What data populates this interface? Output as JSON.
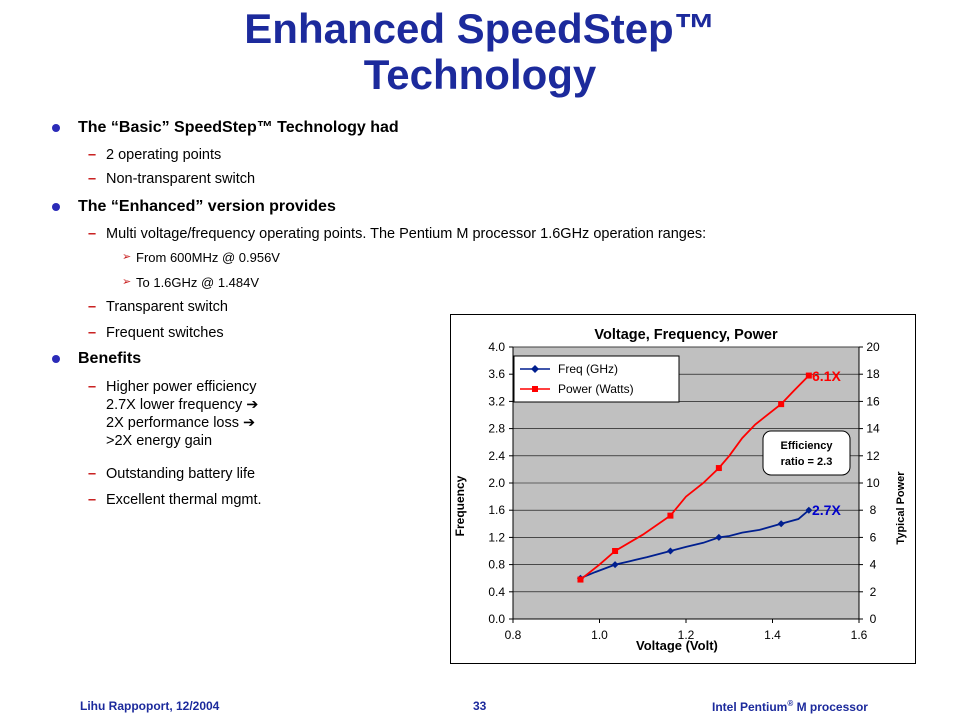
{
  "slide": {
    "title_line1": "Enhanced SpeedStep™",
    "title_line2": "Technology",
    "b1": "The “Basic” SpeedStep™ Technology had",
    "b1_s1": "2 operating points",
    "b1_s2": "Non-transparent switch",
    "b2": "The “Enhanced” version provides",
    "b2_s1": "Multi voltage/frequency operating points. The Pentium M processor 1.6GHz operation ranges:",
    "b2_s1_a": "From 600MHz  @ 0.956V",
    "b2_s1_b": "To 1.6GHz  @ 1.484V",
    "b2_s2": "Transparent switch",
    "b2_s3": "Frequent switches",
    "b3": "Benefits",
    "b3_s1_l1": "Higher power efficiency",
    "b3_s1_l2": "2.7X lower frequency",
    "b3_s1_l3": "2X performance loss",
    "b3_s1_l4": ">2X energy gain",
    "b3_s2": "Outstanding battery life",
    "b3_s3": "Excellent thermal mgmt."
  },
  "footer": {
    "author": "Lihu Rappoport,  12/2004",
    "page": "33",
    "product": "Intel Pentium",
    "product_sup": "®",
    "product_rest": " M processor"
  },
  "colors": {
    "title": "#1c2a9c",
    "freq": "#001f8f",
    "power": "#ff0000",
    "plot_bg": "#c0c0c0"
  },
  "chart_data": {
    "type": "line",
    "title": "Voltage, Frequency, Power",
    "xlabel": "Voltage (Volt)",
    "ylabel": "Frequency",
    "y2label": "Typical Power",
    "xlim": [
      0.8,
      1.6
    ],
    "ylim": [
      0.0,
      4.0
    ],
    "y2lim": [
      0,
      20
    ],
    "xticks": [
      "0.8",
      "1.0",
      "1.2",
      "1.4",
      "1.6"
    ],
    "yticks": [
      "0.0",
      "0.4",
      "0.8",
      "1.2",
      "1.6",
      "2.0",
      "2.4",
      "2.8",
      "3.2",
      "3.6",
      "4.0"
    ],
    "y2ticks": [
      "0",
      "2",
      "4",
      "6",
      "8",
      "10",
      "12",
      "14",
      "16",
      "18",
      "20"
    ],
    "grid": "horizontal",
    "legend_position": "top-left",
    "series": [
      {
        "name": "Freq (GHz)",
        "axis": "left",
        "color": "#001f8f",
        "markers": [
          [
            0.956,
            0.6
          ],
          [
            1.036,
            0.8
          ],
          [
            1.164,
            1.0
          ],
          [
            1.276,
            1.2
          ],
          [
            1.42,
            1.4
          ],
          [
            1.484,
            1.6
          ]
        ],
        "points": [
          [
            0.956,
            0.6
          ],
          [
            0.99,
            0.69
          ],
          [
            1.036,
            0.8
          ],
          [
            1.07,
            0.85
          ],
          [
            1.11,
            0.91
          ],
          [
            1.164,
            1.0
          ],
          [
            1.2,
            1.06
          ],
          [
            1.24,
            1.12
          ],
          [
            1.276,
            1.2
          ],
          [
            1.3,
            1.22
          ],
          [
            1.33,
            1.27
          ],
          [
            1.37,
            1.31
          ],
          [
            1.42,
            1.4
          ],
          [
            1.46,
            1.47
          ],
          [
            1.484,
            1.6
          ]
        ]
      },
      {
        "name": "Power (Watts)",
        "axis": "right",
        "color": "#ff0000",
        "markers": [
          [
            0.956,
            2.9
          ],
          [
            1.036,
            5.0
          ],
          [
            1.164,
            7.6
          ],
          [
            1.276,
            11.1
          ],
          [
            1.42,
            15.8
          ],
          [
            1.484,
            17.9
          ]
        ],
        "points": [
          [
            0.956,
            2.9
          ],
          [
            1.0,
            4.0
          ],
          [
            1.036,
            5.0
          ],
          [
            1.1,
            6.2
          ],
          [
            1.164,
            7.6
          ],
          [
            1.2,
            9.0
          ],
          [
            1.24,
            10.0
          ],
          [
            1.276,
            11.1
          ],
          [
            1.3,
            12.0
          ],
          [
            1.33,
            13.3
          ],
          [
            1.36,
            14.3
          ],
          [
            1.42,
            15.8
          ],
          [
            1.45,
            16.8
          ],
          [
            1.484,
            17.9
          ]
        ]
      }
    ],
    "annotations": {
      "power_ratio": "6.1X",
      "freq_ratio": "2.7X",
      "efficiency_line1": "Efficiency",
      "efficiency_line2": "ratio = 2.3"
    }
  }
}
